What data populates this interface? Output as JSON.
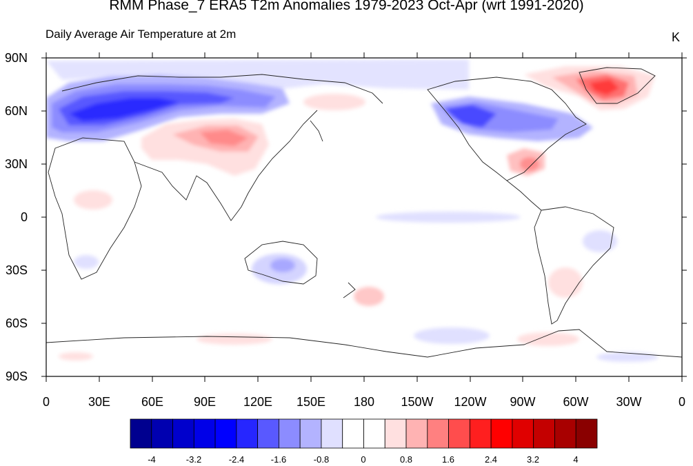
{
  "title": "RMM Phase_7 ERA5 T2m Anomalies 1979-2023 Oct-Apr (wrt 1991-2020)",
  "subtitle": "Daily Average Air Temperature at 2m",
  "units": "K",
  "lat_labels": [
    "90N",
    "60N",
    "30N",
    "0",
    "30S",
    "60S",
    "90S"
  ],
  "lon_labels": [
    "0",
    "30E",
    "60E",
    "90E",
    "120E",
    "150E",
    "180",
    "150W",
    "120W",
    "90W",
    "60W",
    "30W",
    "0"
  ],
  "colorbar": {
    "colors": [
      "#00008f",
      "#0000b0",
      "#0000cc",
      "#0000e8",
      "#0000ff",
      "#2626ff",
      "#5959ff",
      "#8c8cff",
      "#b3b3ff",
      "#e0e0ff",
      "#ffffff",
      "#ffffff",
      "#ffe0e0",
      "#ffb3b3",
      "#ff8080",
      "#ff4d4d",
      "#ff1f1f",
      "#ff0000",
      "#e00000",
      "#c40000",
      "#a80000",
      "#8a0000"
    ],
    "tick_labels": [
      "-4",
      "-3.2",
      "-2.4",
      "-1.6",
      "-0.8",
      "0",
      "0.8",
      "1.6",
      "2.4",
      "3.2",
      "4"
    ]
  },
  "anomaly_regions": [
    {
      "name": "northern-eurasia-cold",
      "color": "#5f5fff"
    },
    {
      "name": "north-america-cold",
      "color": "#6d6dff"
    },
    {
      "name": "greenland-warm",
      "color": "#ff4d4d"
    },
    {
      "name": "central-asia-warm",
      "color": "#ff9a9a"
    },
    {
      "name": "southeast-us-warm",
      "color": "#ff9090"
    }
  ]
}
